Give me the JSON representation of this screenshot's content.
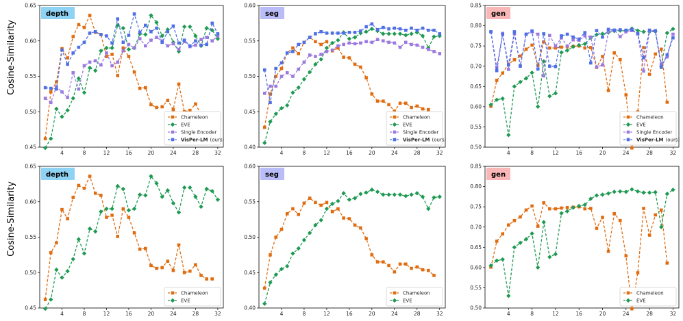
{
  "figure": {
    "ylabel": "Cosine-Similarity",
    "colors": {
      "Chameleon": "#e06c10",
      "EVE": "#1f9a52",
      "Single Encoder": "#9b79e0",
      "VisPer-LM": "#4f6fe6"
    },
    "badge_colors": {
      "depth": "#8fd3f4",
      "seg": "#b9bcf6",
      "gen": "#f9b7b7"
    }
  },
  "chart_data": [
    {
      "type": "line",
      "panel": "depth",
      "title": "depth",
      "ylim": [
        0.45,
        0.65
      ],
      "yticks": [
        "0.45",
        "0.50",
        "0.55",
        "0.60",
        "0.65"
      ],
      "xlim": [
        0,
        33
      ],
      "xticks": [
        4,
        8,
        12,
        16,
        20,
        24,
        28,
        32
      ],
      "x": [
        1,
        2,
        3,
        4,
        5,
        6,
        7,
        8,
        9,
        10,
        11,
        12,
        13,
        14,
        15,
        16,
        17,
        18,
        19,
        20,
        21,
        22,
        23,
        24,
        25,
        26,
        27,
        28,
        29,
        30,
        31,
        32
      ],
      "series": [
        {
          "name": "Chameleon",
          "values": [
            0.462,
            0.528,
            0.542,
            0.589,
            0.576,
            0.606,
            0.623,
            0.619,
            0.636,
            0.612,
            0.609,
            0.578,
            0.581,
            0.551,
            0.59,
            0.578,
            0.556,
            0.533,
            0.534,
            0.51,
            0.506,
            0.507,
            0.516,
            0.503,
            0.539,
            0.5,
            0.502,
            0.511,
            0.496,
            0.491,
            0.491,
            null
          ]
        },
        {
          "name": "EVE",
          "values": [
            0.449,
            0.462,
            0.504,
            0.493,
            0.502,
            0.519,
            0.547,
            0.527,
            0.562,
            0.558,
            0.586,
            0.59,
            0.59,
            0.622,
            0.618,
            0.588,
            0.59,
            0.61,
            0.609,
            0.636,
            0.626,
            0.607,
            0.616,
            0.598,
            0.585,
            0.62,
            0.62,
            0.607,
            0.593,
            0.618,
            0.615,
            0.603
          ]
        },
        {
          "name": "Single Encoder",
          "values": [
            0.519,
            0.513,
            0.535,
            0.528,
            0.52,
            0.555,
            0.532,
            0.565,
            0.57,
            0.572,
            0.566,
            0.583,
            0.565,
            0.57,
            0.586,
            0.595,
            0.59,
            0.603,
            0.593,
            0.601,
            0.605,
            0.6,
            0.593,
            0.596,
            0.588,
            0.599,
            0.592,
            0.594,
            0.602,
            0.605,
            0.6,
            0.607
          ]
        },
        {
          "name": "VisPer-LM (ours)",
          "values": [
            0.534,
            0.533,
            0.532,
            0.587,
            0.567,
            0.583,
            0.591,
            0.598,
            0.611,
            0.613,
            0.609,
            0.607,
            0.597,
            0.631,
            0.598,
            0.608,
            0.638,
            0.612,
            0.622,
            0.613,
            0.618,
            0.598,
            0.613,
            0.621,
            0.597,
            0.601,
            0.593,
            0.6,
            0.594,
            0.595,
            0.625,
            0.61
          ]
        }
      ],
      "legend": [
        "Chameleon",
        "EVE",
        "Single Encoder",
        "VisPer-LM"
      ],
      "legend_suffix": "(ours)"
    },
    {
      "type": "line",
      "panel": "seg",
      "title": "seg",
      "ylim": [
        0.4,
        0.6
      ],
      "yticks": [
        "0.40",
        "0.45",
        "0.50",
        "0.55",
        "0.60"
      ],
      "xlim": [
        0,
        33
      ],
      "xticks": [
        4,
        8,
        12,
        16,
        20,
        24,
        28,
        32
      ],
      "x": [
        1,
        2,
        3,
        4,
        5,
        6,
        7,
        8,
        9,
        10,
        11,
        12,
        13,
        14,
        15,
        16,
        17,
        18,
        19,
        20,
        21,
        22,
        23,
        24,
        25,
        26,
        27,
        28,
        29,
        30,
        31,
        32
      ],
      "series": [
        {
          "name": "Chameleon",
          "values": [
            0.428,
            0.475,
            0.5,
            0.511,
            0.533,
            0.54,
            0.532,
            0.548,
            0.555,
            0.549,
            0.545,
            0.549,
            0.536,
            0.54,
            0.527,
            0.526,
            0.517,
            0.513,
            0.498,
            0.475,
            0.465,
            0.465,
            0.46,
            0.451,
            0.462,
            0.462,
            0.456,
            0.458,
            0.454,
            0.453,
            0.446,
            null
          ]
        },
        {
          "name": "EVE",
          "values": [
            0.406,
            0.436,
            0.447,
            0.455,
            0.459,
            0.477,
            0.484,
            0.496,
            0.506,
            0.517,
            0.524,
            0.54,
            0.547,
            0.551,
            0.562,
            0.553,
            0.555,
            0.561,
            0.563,
            0.567,
            0.564,
            0.56,
            0.56,
            0.56,
            0.56,
            0.558,
            0.56,
            0.562,
            0.557,
            0.54,
            0.556,
            0.557
          ]
        },
        {
          "name": "Single Encoder",
          "values": [
            0.476,
            0.486,
            0.486,
            0.5,
            0.505,
            0.5,
            0.51,
            0.52,
            0.53,
            0.528,
            0.531,
            0.535,
            0.537,
            0.543,
            0.545,
            0.547,
            0.546,
            0.547,
            0.549,
            0.548,
            0.552,
            0.55,
            0.548,
            0.547,
            0.541,
            0.548,
            0.545,
            0.544,
            0.541,
            0.538,
            0.535,
            0.532
          ]
        },
        {
          "name": "VisPer-LM (ours)",
          "values": [
            0.509,
            0.463,
            0.511,
            0.519,
            0.533,
            0.535,
            0.545,
            0.548,
            0.555,
            0.56,
            0.563,
            0.561,
            0.561,
            0.561,
            0.561,
            0.562,
            0.562,
            0.564,
            0.57,
            0.574,
            0.566,
            0.569,
            0.567,
            0.568,
            0.567,
            0.565,
            0.568,
            0.565,
            0.568,
            0.565,
            0.565,
            0.56
          ]
        }
      ],
      "legend": [
        "Chameleon",
        "EVE",
        "Single Encoder",
        "VisPer-LM"
      ],
      "legend_suffix": "(ours)"
    },
    {
      "type": "line",
      "panel": "gen",
      "title": "gen",
      "ylim": [
        0.5,
        0.85
      ],
      "yticks": [
        "0.50",
        "0.55",
        "0.60",
        "0.65",
        "0.70",
        "0.75",
        "0.80",
        "0.85"
      ],
      "xlim": [
        0,
        33
      ],
      "xticks": [
        4,
        8,
        12,
        16,
        20,
        24,
        28,
        32
      ],
      "x": [
        1,
        2,
        3,
        4,
        5,
        6,
        7,
        8,
        9,
        10,
        11,
        12,
        13,
        14,
        15,
        16,
        17,
        18,
        19,
        20,
        21,
        22,
        23,
        24,
        25,
        26,
        27,
        28,
        29,
        30,
        31,
        32
      ],
      "series": [
        {
          "name": "Chameleon",
          "values": [
            0.601,
            0.665,
            0.683,
            0.705,
            0.716,
            0.725,
            0.742,
            0.752,
            0.702,
            0.76,
            0.745,
            0.745,
            0.747,
            0.748,
            0.749,
            0.75,
            0.745,
            0.746,
            0.697,
            0.724,
            0.64,
            0.733,
            0.716,
            0.629,
            0.498,
            0.587,
            0.746,
            0.68,
            0.73,
            0.742,
            0.611,
            null
          ]
        },
        {
          "name": "EVE",
          "values": [
            0.605,
            0.617,
            0.62,
            0.53,
            0.65,
            0.661,
            0.67,
            0.684,
            0.6,
            0.712,
            0.626,
            0.633,
            0.734,
            0.739,
            0.748,
            0.752,
            0.755,
            0.77,
            0.778,
            0.78,
            0.783,
            0.787,
            0.788,
            0.787,
            0.793,
            0.788,
            0.785,
            0.785,
            0.786,
            0.7,
            0.782,
            0.792
          ]
        },
        {
          "name": "Single Encoder",
          "values": [
            0.785,
            0.697,
            0.781,
            0.692,
            0.78,
            0.701,
            0.779,
            0.785,
            0.779,
            0.676,
            0.776,
            0.75,
            0.77,
            0.75,
            0.765,
            0.764,
            0.775,
            0.772,
            0.698,
            0.703,
            0.785,
            0.789,
            0.773,
            0.785,
            0.788,
            0.78,
            0.688,
            0.787,
            0.788,
            0.705,
            0.723,
            0.779
          ]
        },
        {
          "name": "VisPer-LM (ours)",
          "values": [
            0.785,
            0.689,
            0.779,
            0.703,
            0.785,
            0.7,
            0.779,
            0.787,
            0.693,
            0.78,
            0.7,
            0.699,
            0.775,
            0.779,
            0.772,
            0.767,
            0.783,
            0.708,
            0.788,
            0.772,
            0.791,
            0.789,
            0.79,
            0.789,
            0.791,
            0.78,
            0.721,
            0.789,
            0.787,
            0.697,
            0.728,
            0.77
          ]
        }
      ],
      "legend": [
        "Chameleon",
        "EVE",
        "Single Encoder",
        "VisPer-LM"
      ],
      "legend_suffix": "(ours)"
    },
    {
      "type": "line",
      "panel": "depth",
      "title": "depth",
      "ylim": [
        0.45,
        0.65
      ],
      "yticks": [
        "0.45",
        "0.50",
        "0.55",
        "0.60",
        "0.65"
      ],
      "xlim": [
        0,
        33
      ],
      "xticks": [
        4,
        8,
        12,
        16,
        20,
        24,
        28,
        32
      ],
      "x": [
        1,
        2,
        3,
        4,
        5,
        6,
        7,
        8,
        9,
        10,
        11,
        12,
        13,
        14,
        15,
        16,
        17,
        18,
        19,
        20,
        21,
        22,
        23,
        24,
        25,
        26,
        27,
        28,
        29,
        30,
        31,
        32
      ],
      "series": [
        {
          "name": "Chameleon",
          "values": [
            0.462,
            0.528,
            0.542,
            0.589,
            0.576,
            0.606,
            0.623,
            0.619,
            0.636,
            0.612,
            0.609,
            0.578,
            0.581,
            0.551,
            0.59,
            0.578,
            0.556,
            0.533,
            0.534,
            0.51,
            0.506,
            0.507,
            0.516,
            0.503,
            0.539,
            0.5,
            0.502,
            0.511,
            0.496,
            0.491,
            0.491,
            null
          ]
        },
        {
          "name": "EVE",
          "values": [
            0.449,
            0.462,
            0.504,
            0.493,
            0.502,
            0.519,
            0.547,
            0.527,
            0.562,
            0.558,
            0.586,
            0.59,
            0.59,
            0.622,
            0.618,
            0.588,
            0.59,
            0.61,
            0.609,
            0.636,
            0.626,
            0.607,
            0.616,
            0.598,
            0.585,
            0.62,
            0.62,
            0.607,
            0.593,
            0.618,
            0.615,
            0.603
          ]
        }
      ],
      "legend": [
        "Chameleon",
        "EVE"
      ],
      "legend_suffix": ""
    },
    {
      "type": "line",
      "panel": "seg",
      "title": "seg",
      "ylim": [
        0.4,
        0.6
      ],
      "yticks": [
        "0.40",
        "0.45",
        "0.50",
        "0.55",
        "0.60"
      ],
      "xlim": [
        0,
        33
      ],
      "xticks": [
        4,
        8,
        12,
        16,
        20,
        24,
        28,
        32
      ],
      "x": [
        1,
        2,
        3,
        4,
        5,
        6,
        7,
        8,
        9,
        10,
        11,
        12,
        13,
        14,
        15,
        16,
        17,
        18,
        19,
        20,
        21,
        22,
        23,
        24,
        25,
        26,
        27,
        28,
        29,
        30,
        31,
        32
      ],
      "series": [
        {
          "name": "Chameleon",
          "values": [
            0.428,
            0.475,
            0.5,
            0.511,
            0.533,
            0.54,
            0.532,
            0.548,
            0.555,
            0.549,
            0.545,
            0.549,
            0.536,
            0.54,
            0.527,
            0.526,
            0.517,
            0.513,
            0.498,
            0.475,
            0.465,
            0.465,
            0.46,
            0.451,
            0.462,
            0.462,
            0.456,
            0.458,
            0.454,
            0.453,
            0.446,
            null
          ]
        },
        {
          "name": "EVE",
          "values": [
            0.406,
            0.436,
            0.447,
            0.455,
            0.459,
            0.477,
            0.484,
            0.496,
            0.506,
            0.517,
            0.524,
            0.54,
            0.547,
            0.551,
            0.562,
            0.553,
            0.555,
            0.561,
            0.563,
            0.567,
            0.564,
            0.56,
            0.56,
            0.56,
            0.56,
            0.558,
            0.56,
            0.562,
            0.557,
            0.54,
            0.556,
            0.557
          ]
        }
      ],
      "legend": [
        "Chameleon",
        "EVE"
      ],
      "legend_suffix": ""
    },
    {
      "type": "line",
      "panel": "gen",
      "title": "gen",
      "ylim": [
        0.5,
        0.85
      ],
      "yticks": [
        "0.50",
        "0.55",
        "0.60",
        "0.65",
        "0.70",
        "0.75",
        "0.80",
        "0.85"
      ],
      "xlim": [
        0,
        33
      ],
      "xticks": [
        4,
        8,
        12,
        16,
        20,
        24,
        28,
        32
      ],
      "x": [
        1,
        2,
        3,
        4,
        5,
        6,
        7,
        8,
        9,
        10,
        11,
        12,
        13,
        14,
        15,
        16,
        17,
        18,
        19,
        20,
        21,
        22,
        23,
        24,
        25,
        26,
        27,
        28,
        29,
        30,
        31,
        32
      ],
      "series": [
        {
          "name": "Chameleon",
          "values": [
            0.601,
            0.665,
            0.683,
            0.705,
            0.716,
            0.725,
            0.742,
            0.752,
            0.702,
            0.76,
            0.745,
            0.745,
            0.747,
            0.748,
            0.749,
            0.75,
            0.745,
            0.746,
            0.697,
            0.724,
            0.64,
            0.733,
            0.716,
            0.629,
            0.498,
            0.587,
            0.746,
            0.68,
            0.73,
            0.742,
            0.611,
            null
          ]
        },
        {
          "name": "EVE",
          "values": [
            0.605,
            0.617,
            0.62,
            0.53,
            0.65,
            0.661,
            0.67,
            0.684,
            0.6,
            0.712,
            0.626,
            0.633,
            0.734,
            0.739,
            0.748,
            0.752,
            0.755,
            0.77,
            0.778,
            0.78,
            0.783,
            0.787,
            0.788,
            0.787,
            0.793,
            0.788,
            0.785,
            0.785,
            0.786,
            0.7,
            0.782,
            0.792
          ]
        }
      ],
      "legend": [
        "Chameleon",
        "EVE"
      ],
      "legend_suffix": ""
    }
  ]
}
